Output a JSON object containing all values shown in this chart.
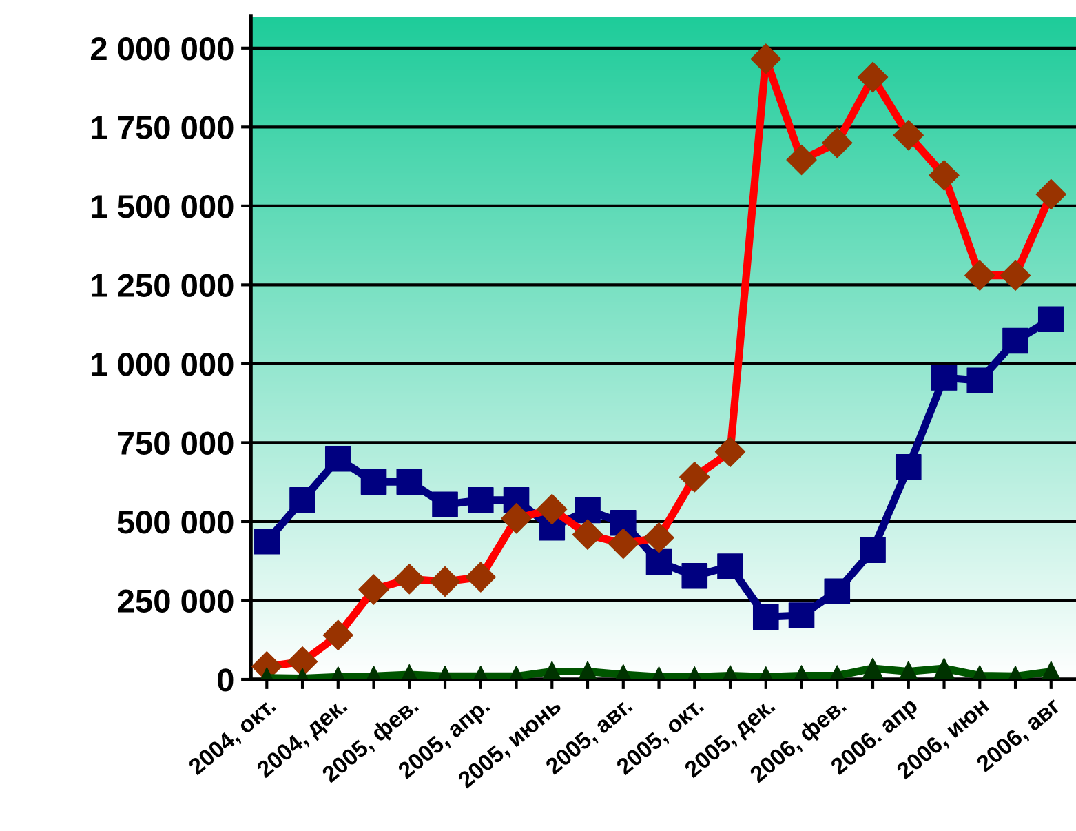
{
  "chart_data": {
    "type": "line",
    "categories": [
      "2004, окт.",
      null,
      "2004, дек.",
      null,
      "2005, фев.",
      null,
      "2005, апр.",
      null,
      "2005, июнь",
      null,
      "2005, авг.",
      null,
      "2005, окт.",
      null,
      "2005, дек.",
      null,
      "2006, фев.",
      null,
      "2006. апр",
      null,
      "2006, июн",
      null,
      "2006, авг"
    ],
    "series": [
      {
        "color": "#000080",
        "marker": "square",
        "values": [
          437000,
          568000,
          699000,
          626000,
          626000,
          554000,
          568000,
          568000,
          481000,
          536000,
          496000,
          372000,
          328000,
          358000,
          198000,
          203000,
          279000,
          410000,
          673000,
          956000,
          947000,
          1073000,
          1141000
        ]
      },
      {
        "color": "#ff0000",
        "marker": "diamond",
        "colors": [
          "#993300",
          "#993300",
          "#993300",
          "#993300",
          "#993300",
          "#993300",
          "#993300",
          "#993300",
          "#993300",
          "#993300",
          "#993300",
          "#993300",
          "#993300",
          "#993300",
          "#993300",
          "#993300",
          "#993300",
          "#993300",
          "#993300",
          "#993300",
          "#993300",
          "#993300",
          "#993300"
        ],
        "values": [
          41000,
          56000,
          140000,
          285000,
          318000,
          310000,
          324000,
          510000,
          539000,
          459000,
          430000,
          449000,
          641000,
          721000,
          1966000,
          1646000,
          1700000,
          1908000,
          1724000,
          1597000,
          1280000,
          1280000,
          1537000
        ]
      },
      {
        "color": "#005500",
        "marker": "triangle",
        "colors": [
          "#003300",
          "#003300",
          "#003300",
          "#003300",
          "#003300",
          "#003300",
          "#003300",
          "#003300",
          "#003300",
          "#003300",
          "#003300",
          "#003300",
          "#003300",
          "#003300",
          "#003300",
          "#003300",
          "#003300",
          "#003300",
          "#003300",
          "#003300",
          "#003300",
          "#003300",
          "#003300"
        ],
        "values": [
          5000,
          3000,
          8000,
          10000,
          15000,
          10000,
          10000,
          10000,
          25000,
          25000,
          15000,
          8000,
          8000,
          12000,
          8000,
          12000,
          12000,
          35000,
          25000,
          35000,
          12000,
          10000,
          25000
        ]
      }
    ],
    "ylim": [
      0,
      2100000
    ],
    "yticks": [
      0,
      {
        "value": 250000,
        "label": "250 000"
      },
      {
        "value": 500000,
        "label": "500 000"
      },
      {
        "value": 750000,
        "label": "750 000"
      },
      {
        "value": 1000000,
        "label": "1 000 000"
      },
      {
        "value": 1250000,
        "label": "1 250 000"
      },
      {
        "value": 1500000,
        "label": "1 500 000"
      },
      {
        "value": 1750000,
        "label": "1 750 000"
      },
      {
        "value": 2000000,
        "label": "2 000 000"
      }
    ],
    "grid": "y",
    "legend": false,
    "line_style": "solid"
  }
}
